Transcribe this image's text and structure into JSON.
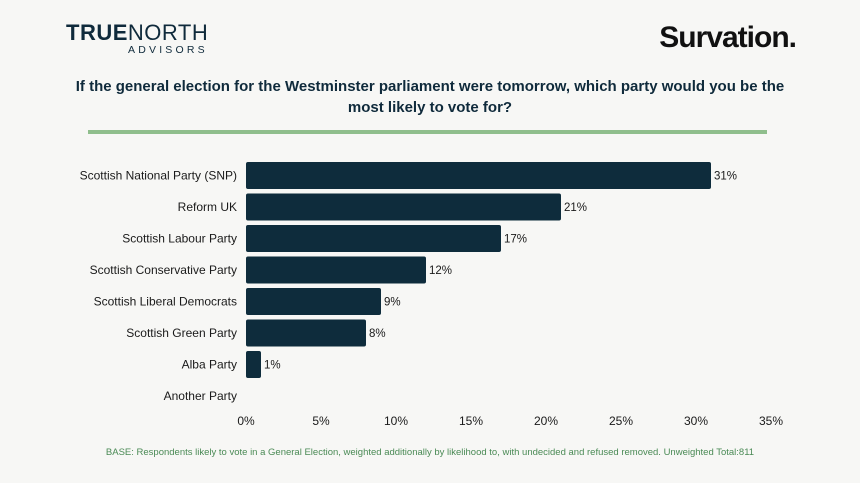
{
  "logos": {
    "left_bold": "TRUE",
    "left_light": "NORTH",
    "left_sub": "ADVISORS",
    "right": "Survation."
  },
  "question": "If the general election for the Westminster parliament were tomorrow, which party would you be the most likely to vote for?",
  "footer": "BASE: Respondents likely to vote in a General Election, weighted additionally by likelihood to, with undecided and refused removed. Unweighted Total:811",
  "colors": {
    "bar": "#0e2c3c",
    "accent_rule": "#8fbe8c",
    "footer_text": "#4a8a55"
  },
  "chart_data": {
    "type": "bar",
    "orientation": "horizontal",
    "title": "If the general election for the Westminster parliament were tomorrow, which party would you be the most likely to vote for?",
    "categories": [
      "Scottish National Party (SNP)",
      "Reform UK",
      "Scottish Labour Party",
      "Scottish Conservative Party",
      "Scottish Liberal Democrats",
      "Scottish Green Party",
      "Alba Party",
      "Another Party"
    ],
    "values": [
      31,
      21,
      17,
      12,
      9,
      8,
      1,
      0
    ],
    "value_labels": [
      "31%",
      "21%",
      "17%",
      "12%",
      "9%",
      "8%",
      "1%",
      ""
    ],
    "xlim": [
      0,
      35
    ],
    "x_ticks": [
      0,
      5,
      10,
      15,
      20,
      25,
      30,
      35
    ],
    "x_tick_labels": [
      "0%",
      "5%",
      "10%",
      "15%",
      "20%",
      "25%",
      "30%",
      "35%"
    ],
    "xlabel": "",
    "ylabel": "",
    "grid": false
  }
}
